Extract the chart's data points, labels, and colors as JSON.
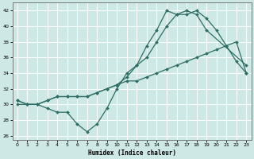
{
  "xlabel": "Humidex (Indice chaleur)",
  "bg_color": "#cde8e5",
  "line_color": "#2e6e65",
  "grid_color": "#ffffff",
  "xlim": [
    -0.5,
    23.5
  ],
  "ylim": [
    25.5,
    43
  ],
  "yticks": [
    26,
    28,
    30,
    32,
    34,
    36,
    38,
    40,
    42
  ],
  "xticks": [
    0,
    1,
    2,
    3,
    4,
    5,
    6,
    7,
    8,
    9,
    10,
    11,
    12,
    13,
    14,
    15,
    16,
    17,
    18,
    19,
    20,
    21,
    22,
    23
  ],
  "line1_x": [
    0,
    1,
    2,
    3,
    4,
    5,
    6,
    7,
    8,
    9,
    10,
    11,
    12,
    13,
    14,
    15,
    16,
    17,
    18,
    19,
    20,
    21,
    22,
    23
  ],
  "line1_y": [
    30.5,
    30.0,
    30.0,
    29.5,
    29.0,
    29.0,
    27.5,
    26.5,
    27.5,
    29.5,
    32.0,
    34.0,
    35.0,
    36.0,
    38.0,
    40.0,
    41.5,
    41.5,
    42.0,
    41.0,
    39.5,
    37.5,
    35.5,
    34.0
  ],
  "line2_x": [
    0,
    1,
    2,
    3,
    4,
    5,
    6,
    7,
    8,
    9,
    10,
    11,
    12,
    13,
    14,
    15,
    16,
    17,
    18,
    19,
    20,
    21,
    22,
    23
  ],
  "line2_y": [
    30.0,
    30.0,
    30.0,
    30.5,
    31.0,
    31.0,
    31.0,
    31.0,
    31.5,
    32.0,
    32.5,
    33.0,
    33.0,
    33.5,
    34.0,
    34.5,
    35.0,
    35.5,
    36.0,
    36.5,
    37.0,
    37.5,
    38.0,
    34.0
  ],
  "line3_x": [
    0,
    1,
    2,
    3,
    4,
    5,
    6,
    7,
    8,
    9,
    10,
    11,
    12,
    13,
    14,
    15,
    16,
    17,
    18,
    19,
    23
  ],
  "line3_y": [
    30.5,
    30.0,
    30.0,
    30.5,
    31.0,
    31.0,
    31.0,
    31.0,
    31.5,
    32.0,
    32.5,
    33.5,
    35.0,
    37.5,
    39.5,
    42.0,
    41.5,
    42.0,
    41.5,
    39.5,
    35.0
  ]
}
